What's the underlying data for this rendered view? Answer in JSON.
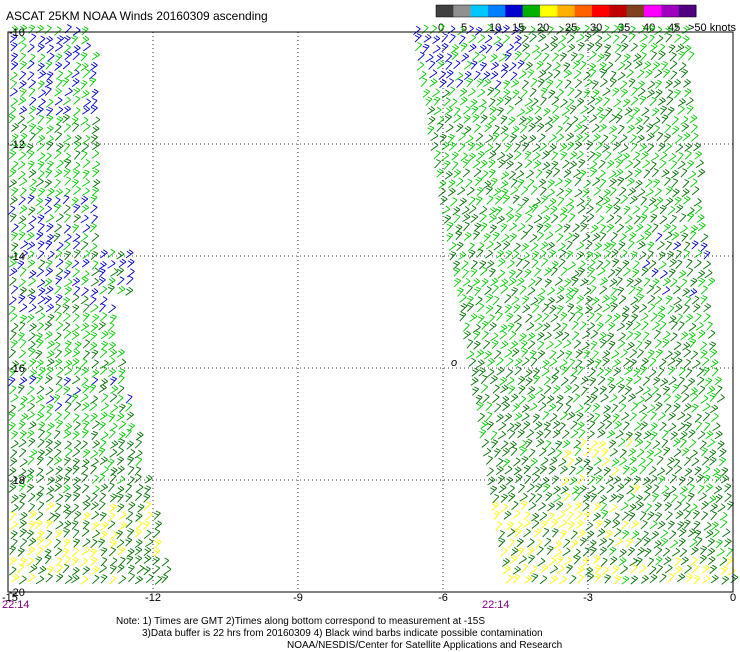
{
  "title": "ASCAT 25KM NOAA Winds 20160309 ascending",
  "legend": {
    "ticks": [
      "0",
      "5",
      "10",
      "15",
      "20",
      "25",
      "30",
      "35",
      "40",
      "45",
      ">50 knots"
    ],
    "colors": [
      "#404040",
      "#909090",
      "#00c8ff",
      "#0080ff",
      "#0000d0",
      "#00b000",
      "#ffff00",
      "#ffb000",
      "#ff6000",
      "#ff0000",
      "#c00000",
      "#804020",
      "#ff00ff",
      "#a000c0",
      "#500080"
    ]
  },
  "axes": {
    "x_ticks": [
      "-15",
      "-12",
      "-9",
      "-6",
      "-3",
      "0"
    ],
    "y_ticks": [
      "-10",
      "-12",
      "-14",
      "-16",
      "-18",
      "-20"
    ],
    "lon_range": [
      -15,
      0
    ],
    "lat_range": [
      -20,
      -10
    ]
  },
  "times": [
    "22:14",
    "22:14"
  ],
  "map_label": "o",
  "notes": [
    "Note: 1) Times are GMT 2)Times along bottom correspond to measurement at -15S",
    "3)Data buffer is 22 hrs from 20160309 4) Black wind barbs indicate possible contamination",
    "NOAA/NESDIS/Center for Satellite Applications and Research"
  ],
  "colors": {
    "barb_blue": "#0000cc",
    "barb_green": "#00cc00",
    "barb_dark_green": "#007000",
    "barb_yellow": "#ffff00",
    "time_label": "#800080"
  }
}
